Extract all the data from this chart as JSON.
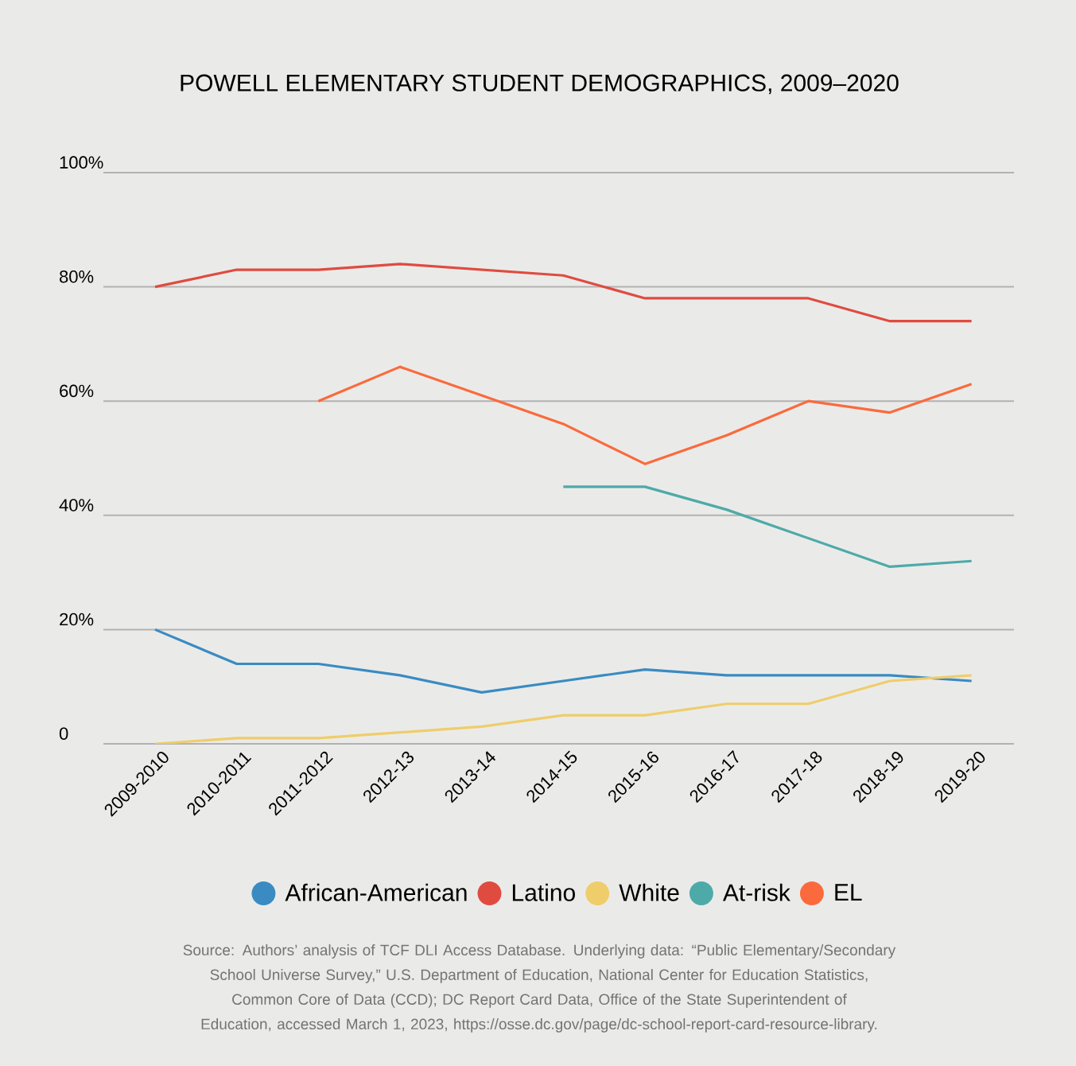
{
  "chart_data": {
    "type": "line",
    "title": "POWELL ELEMENTARY STUDENT DEMOGRAPHICS, 2009–2020",
    "categories": [
      "2009-2010",
      "2010-2011",
      "2011-2012",
      "2012-13",
      "2013-14",
      "2014-15",
      "2015-16",
      "2016-17",
      "2017-18",
      "2018-19",
      "2019-20"
    ],
    "series": [
      {
        "name": "African-American",
        "color": "#3a8bc2",
        "values": [
          20,
          14,
          14,
          12,
          9,
          11,
          13,
          12,
          12,
          12,
          11
        ]
      },
      {
        "name": "Latino",
        "color": "#e04b40",
        "values": [
          80,
          83,
          83,
          84,
          83,
          82,
          78,
          78,
          78,
          74,
          74
        ]
      },
      {
        "name": "White",
        "color": "#efcd6b",
        "values": [
          0,
          1,
          1,
          2,
          3,
          5,
          5,
          7,
          7,
          11,
          12
        ]
      },
      {
        "name": "At-risk",
        "color": "#4eaaa8",
        "values": [
          null,
          null,
          null,
          null,
          null,
          45,
          45,
          41,
          36,
          31,
          32
        ]
      },
      {
        "name": "EL",
        "color": "#fb6a3c",
        "values": [
          null,
          null,
          60,
          66,
          61,
          56,
          49,
          54,
          60,
          58,
          63
        ]
      }
    ],
    "ylim": [
      0,
      100
    ],
    "yticks": [
      {
        "value": 0,
        "label": "0"
      },
      {
        "value": 20,
        "label": "20%"
      },
      {
        "value": 40,
        "label": "40%"
      },
      {
        "value": 60,
        "label": "60%"
      },
      {
        "value": 80,
        "label": "80%"
      },
      {
        "value": 100,
        "label": "100%"
      }
    ],
    "grid": "y",
    "legend": "bottom",
    "annotations": [
      "Source: Authors’ analysis of TCF DLI Access Database. Underlying data: “Public Elementary/Secondary School Universe Survey,” U.S. Department of Education, National Center for Education Statistics, Common Core of Data (CCD); DC Report Card Data, Office of the State Superintendent of Education, accessed March 1, 2023, https://osse.dc.gov/page/dc-school-report-card-resource-library."
    ]
  }
}
